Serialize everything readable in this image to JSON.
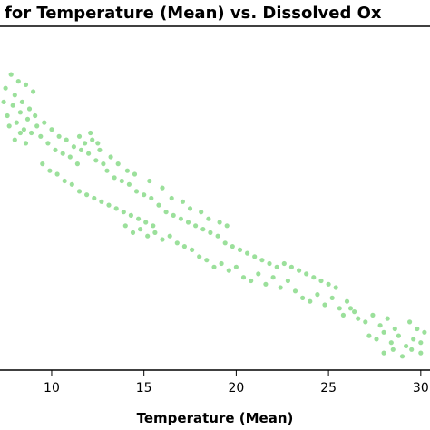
{
  "chart_data": {
    "type": "scatter",
    "title": "for Temperature (Mean) vs. Dissolved Ox",
    "xlabel": "Temperature (Mean)",
    "ylabel": "",
    "xlim": [
      7.2,
      30.5
    ],
    "ylim": [
      0,
      1
    ],
    "x_ticks": [
      10,
      15,
      20,
      25,
      30
    ],
    "x_tick_labels": [
      "10",
      "15",
      "20",
      "25",
      "30"
    ],
    "point_color": "#9be09b",
    "grid": false,
    "series": [
      {
        "values": [
          [
            7.5,
            0.82
          ],
          [
            7.8,
            0.86
          ],
          [
            8.0,
            0.8
          ],
          [
            8.2,
            0.84
          ],
          [
            8.4,
            0.78
          ],
          [
            8.6,
            0.83
          ],
          [
            8.8,
            0.76
          ],
          [
            9.0,
            0.81
          ],
          [
            7.6,
            0.74
          ],
          [
            7.9,
            0.77
          ],
          [
            8.1,
            0.72
          ],
          [
            8.3,
            0.75
          ],
          [
            8.5,
            0.7
          ],
          [
            8.7,
            0.73
          ],
          [
            8.9,
            0.69
          ],
          [
            9.1,
            0.74
          ],
          [
            7.4,
            0.78
          ],
          [
            7.7,
            0.71
          ],
          [
            8.0,
            0.67
          ],
          [
            8.3,
            0.69
          ],
          [
            8.6,
            0.66
          ],
          [
            9.2,
            0.71
          ],
          [
            9.4,
            0.68
          ],
          [
            9.6,
            0.72
          ],
          [
            9.8,
            0.66
          ],
          [
            10.0,
            0.7
          ],
          [
            10.2,
            0.64
          ],
          [
            10.4,
            0.68
          ],
          [
            10.6,
            0.63
          ],
          [
            10.8,
            0.67
          ],
          [
            11.0,
            0.62
          ],
          [
            11.2,
            0.65
          ],
          [
            11.4,
            0.6
          ],
          [
            11.6,
            0.64
          ],
          [
            11.8,
            0.66
          ],
          [
            12.0,
            0.63
          ],
          [
            12.2,
            0.67
          ],
          [
            12.4,
            0.61
          ],
          [
            12.6,
            0.64
          ],
          [
            12.8,
            0.6
          ],
          [
            9.5,
            0.6
          ],
          [
            9.9,
            0.58
          ],
          [
            10.3,
            0.57
          ],
          [
            10.7,
            0.55
          ],
          [
            11.1,
            0.54
          ],
          [
            11.5,
            0.52
          ],
          [
            11.9,
            0.51
          ],
          [
            12.3,
            0.5
          ],
          [
            12.7,
            0.49
          ],
          [
            13.1,
            0.48
          ],
          [
            13.5,
            0.47
          ],
          [
            13.9,
            0.46
          ],
          [
            14.3,
            0.45
          ],
          [
            14.7,
            0.44
          ],
          [
            15.1,
            0.43
          ],
          [
            15.5,
            0.42
          ],
          [
            13.0,
            0.58
          ],
          [
            13.4,
            0.56
          ],
          [
            13.8,
            0.55
          ],
          [
            14.2,
            0.54
          ],
          [
            14.6,
            0.52
          ],
          [
            15.0,
            0.51
          ],
          [
            15.4,
            0.5
          ],
          [
            15.8,
            0.48
          ],
          [
            14.0,
            0.42
          ],
          [
            14.4,
            0.4
          ],
          [
            14.8,
            0.41
          ],
          [
            15.2,
            0.39
          ],
          [
            15.6,
            0.4
          ],
          [
            16.0,
            0.38
          ],
          [
            16.4,
            0.39
          ],
          [
            16.8,
            0.37
          ],
          [
            16.2,
            0.46
          ],
          [
            16.6,
            0.45
          ],
          [
            17.0,
            0.44
          ],
          [
            17.4,
            0.43
          ],
          [
            17.8,
            0.42
          ],
          [
            18.2,
            0.41
          ],
          [
            18.6,
            0.4
          ],
          [
            19.0,
            0.39
          ],
          [
            17.2,
            0.36
          ],
          [
            17.6,
            0.35
          ],
          [
            18.0,
            0.33
          ],
          [
            18.4,
            0.32
          ],
          [
            18.8,
            0.3
          ],
          [
            19.2,
            0.31
          ],
          [
            19.6,
            0.29
          ],
          [
            20.0,
            0.3
          ],
          [
            19.4,
            0.37
          ],
          [
            19.8,
            0.36
          ],
          [
            20.2,
            0.35
          ],
          [
            20.6,
            0.34
          ],
          [
            21.0,
            0.33
          ],
          [
            21.4,
            0.32
          ],
          [
            21.8,
            0.31
          ],
          [
            22.2,
            0.3
          ],
          [
            20.4,
            0.27
          ],
          [
            20.8,
            0.26
          ],
          [
            21.2,
            0.28
          ],
          [
            21.6,
            0.25
          ],
          [
            22.0,
            0.27
          ],
          [
            22.4,
            0.24
          ],
          [
            22.8,
            0.26
          ],
          [
            23.2,
            0.23
          ],
          [
            22.6,
            0.31
          ],
          [
            23.0,
            0.3
          ],
          [
            23.4,
            0.29
          ],
          [
            23.8,
            0.28
          ],
          [
            24.2,
            0.27
          ],
          [
            24.6,
            0.26
          ],
          [
            25.0,
            0.25
          ],
          [
            25.4,
            0.24
          ],
          [
            23.6,
            0.21
          ],
          [
            24.0,
            0.2
          ],
          [
            24.4,
            0.22
          ],
          [
            24.8,
            0.19
          ],
          [
            25.2,
            0.21
          ],
          [
            25.6,
            0.18
          ],
          [
            26.0,
            0.2
          ],
          [
            26.4,
            0.17
          ],
          [
            25.8,
            0.16
          ],
          [
            26.2,
            0.18
          ],
          [
            26.6,
            0.15
          ],
          [
            27.0,
            0.14
          ],
          [
            27.4,
            0.16
          ],
          [
            27.8,
            0.13
          ],
          [
            28.2,
            0.15
          ],
          [
            28.6,
            0.12
          ],
          [
            27.2,
            0.1
          ],
          [
            27.6,
            0.09
          ],
          [
            28.0,
            0.11
          ],
          [
            28.4,
            0.08
          ],
          [
            28.8,
            0.1
          ],
          [
            29.2,
            0.07
          ],
          [
            29.6,
            0.09
          ],
          [
            30.0,
            0.08
          ],
          [
            28.0,
            0.05
          ],
          [
            28.5,
            0.06
          ],
          [
            29.0,
            0.04
          ],
          [
            29.5,
            0.06
          ],
          [
            30.0,
            0.05
          ],
          [
            29.8,
            0.12
          ],
          [
            29.4,
            0.14
          ],
          [
            30.2,
            0.11
          ],
          [
            11.5,
            0.68
          ],
          [
            12.1,
            0.69
          ],
          [
            12.5,
            0.66
          ],
          [
            13.2,
            0.62
          ],
          [
            13.6,
            0.6
          ],
          [
            14.1,
            0.58
          ],
          [
            14.5,
            0.57
          ],
          [
            15.3,
            0.55
          ],
          [
            16.0,
            0.53
          ],
          [
            16.5,
            0.5
          ],
          [
            17.1,
            0.49
          ],
          [
            17.5,
            0.47
          ],
          [
            18.1,
            0.46
          ],
          [
            18.5,
            0.44
          ],
          [
            19.1,
            0.43
          ],
          [
            19.5,
            0.42
          ]
        ]
      }
    ]
  }
}
